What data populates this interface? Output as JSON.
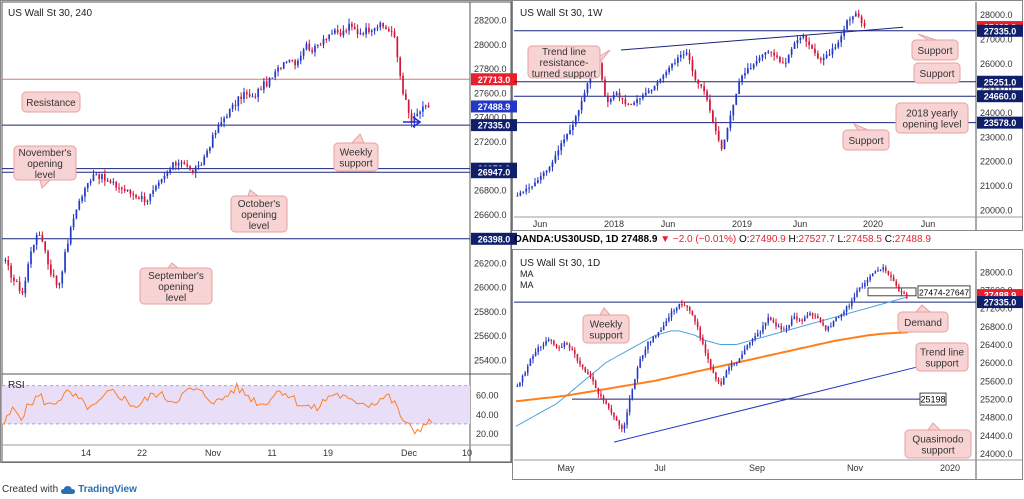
{
  "footer": {
    "created_with": "Created with",
    "brand": "TradingView",
    "brand_icon": "tradingview-cloud-icon"
  },
  "colors": {
    "up": "#2438c8",
    "down": "#d3173a",
    "resistance_line": "#e57373",
    "support_line": "#1a237e",
    "rsi_line": "#ff7f27",
    "rsi_fill": "#e9def8",
    "ma_blue": "#4aa3df",
    "ma_orange": "#ff7f1c",
    "label_bg": "#f8d3d3",
    "label_border": "#e7a1a1",
    "price_red": "#e8202e",
    "price_navy": "#101f6b"
  },
  "chart_data": [
    {
      "id": "h4",
      "type": "candlestick",
      "title": "US Wall St 30, 240",
      "ylim": [
        25300,
        28350
      ],
      "y_ticks": [
        25400,
        25600,
        25800,
        26000,
        26200,
        26400,
        26600,
        26800,
        27000,
        27200,
        27400,
        27600,
        27800,
        28000,
        28200
      ],
      "x_ticks": [
        "14",
        "22",
        "Nov",
        "11",
        "19",
        "Dec",
        "10"
      ],
      "levels": [
        {
          "label": "27713.0",
          "value": 27713,
          "style": "resistance"
        },
        {
          "label": "27488.9",
          "value": 27488.9,
          "style": "current"
        },
        {
          "label": "27335.0",
          "value": 27335,
          "style": "support"
        },
        {
          "label": "26976.0",
          "value": 26976,
          "style": "support"
        },
        {
          "label": "26947.0",
          "value": 26947,
          "style": "support"
        },
        {
          "label": "26398.0",
          "value": 26398,
          "style": "support"
        }
      ],
      "annotations": [
        {
          "text": "Resistance"
        },
        {
          "text": "Weekly support"
        },
        {
          "text": "November's opening level"
        },
        {
          "text": "October's opening level"
        },
        {
          "text": "September's opening level"
        }
      ],
      "path": [
        26200,
        26050,
        25950,
        26350,
        26450,
        26150,
        26000,
        26350,
        26650,
        26800,
        26950,
        26900,
        26850,
        26820,
        26780,
        26750,
        26720,
        26800,
        26900,
        27000,
        27050,
        26950,
        26980,
        27150,
        27300,
        27420,
        27500,
        27600,
        27550,
        27650,
        27700,
        27800,
        27900,
        27850,
        28000,
        27950,
        28050,
        28100,
        28080,
        28150,
        28100,
        28120,
        28160,
        28140,
        28100,
        27650,
        27350,
        27450,
        27488.9
      ],
      "rsi": {
        "label": "RSI",
        "y_ticks": [
          20,
          40,
          60
        ],
        "band": [
          30,
          70
        ],
        "values": [
          30,
          45,
          38,
          52,
          60,
          48,
          55,
          62,
          58,
          50,
          46,
          55,
          64,
          60,
          52,
          48,
          56,
          62,
          58,
          54,
          60,
          66,
          63,
          57,
          52,
          60,
          68,
          62,
          55,
          50,
          58,
          66,
          60,
          52,
          48,
          45,
          55,
          62,
          58,
          52,
          54,
          50,
          55,
          60,
          48,
          30,
          22,
          28,
          32
        ]
      }
    },
    {
      "id": "weekly",
      "type": "candlestick",
      "title": "US Wall St 30, 1W",
      "ylim": [
        19800,
        28350
      ],
      "y_ticks": [
        20000,
        21000,
        22000,
        23000,
        24000,
        25000,
        26000,
        27000,
        28000
      ],
      "x_ticks": [
        "Jun",
        "2018",
        "Jun",
        "2019",
        "Jun",
        "2020",
        "Jun"
      ],
      "levels": [
        {
          "label": "27488.9",
          "value": 27488.9,
          "style": "current"
        },
        {
          "label": "27335.0",
          "value": 27335,
          "style": "support"
        },
        {
          "label": "25251.0",
          "value": 25251,
          "style": "support"
        },
        {
          "label": "24660.0",
          "value": 24660,
          "style": "support"
        },
        {
          "label": "23578.0",
          "value": 23578,
          "style": "support"
        }
      ],
      "annotations": [
        {
          "text": "Trend line resistance-turned support"
        },
        {
          "text": "Support"
        },
        {
          "text": "Support"
        },
        {
          "text": "2018 yearly opening level"
        },
        {
          "text": "Support"
        }
      ],
      "path": [
        20600,
        20900,
        21100,
        21500,
        22000,
        22800,
        23300,
        24200,
        25400,
        26400,
        24300,
        24800,
        24400,
        24300,
        24700,
        24900,
        25300,
        25800,
        26200,
        26500,
        25300,
        24900,
        23500,
        22500,
        24000,
        25400,
        25800,
        26100,
        26500,
        26300,
        25900,
        26800,
        27200,
        26600,
        26100,
        26400,
        26800,
        27700,
        28100,
        27488.9
      ]
    },
    {
      "id": "daily",
      "type": "candlestick",
      "title": "US Wall St 30, 1D",
      "legend": [
        "MA",
        "MA"
      ],
      "header": {
        "symbol": "OANDA:US30USD, 1D",
        "last": "27488.9",
        "change": "▼ −2.0 (−0.01%)",
        "o_label": "O:",
        "o": "27490.9",
        "h_label": "H:",
        "h": "27527.7",
        "l_label": "L:",
        "l": "27458.5",
        "c_label": "C:",
        "c": "27488.9"
      },
      "ylim": [
        23900,
        28350
      ],
      "y_ticks": [
        24000,
        24400,
        24800,
        25200,
        25600,
        26000,
        26400,
        26800,
        27200,
        27600,
        28000
      ],
      "x_ticks": [
        "May",
        "Jul",
        "Sep",
        "Nov",
        "2020"
      ],
      "levels": [
        {
          "label": "27488.9",
          "value": 27488.9,
          "style": "current"
        },
        {
          "label": "27335.0",
          "value": 27335,
          "style": "support"
        },
        {
          "label": "25198",
          "value": 25198,
          "style": "quasimodo"
        }
      ],
      "zone": {
        "label": "27474-27647",
        "low": 27474,
        "high": 27647
      },
      "annotations": [
        {
          "text": "Weekly support"
        },
        {
          "text": "Demand"
        },
        {
          "text": "Trend line support"
        },
        {
          "text": "Quasimodo support"
        }
      ],
      "path": [
        25500,
        25800,
        26200,
        26400,
        26500,
        26300,
        26450,
        26200,
        25900,
        25700,
        25300,
        25100,
        24800,
        24500,
        25300,
        26000,
        26400,
        26600,
        26800,
        27100,
        27300,
        27200,
        26900,
        26300,
        25800,
        25500,
        25900,
        26000,
        26300,
        26500,
        26700,
        27000,
        26800,
        26700,
        27000,
        26900,
        27100,
        27000,
        26700,
        26900,
        27100,
        27300,
        27600,
        27800,
        28000,
        28100,
        27900,
        27600,
        27488.9
      ],
      "ma_blue": [
        24600,
        24700,
        24800,
        24900,
        25000,
        25100,
        25250,
        25400,
        25550,
        25700,
        25850,
        26000,
        26100,
        26200,
        26300,
        26400,
        26500,
        26600,
        26650,
        26700,
        26700,
        26650,
        26600,
        26500,
        26450,
        26400,
        26400,
        26400,
        26450,
        26500,
        26550,
        26600,
        26650,
        26700,
        26750,
        26800,
        26850,
        26900,
        26950,
        27000,
        27050,
        27100,
        27150,
        27200,
        27250,
        27300,
        27350,
        27400,
        27450
      ],
      "ma_orange": [
        25150,
        25170,
        25190,
        25210,
        25230,
        25250,
        25270,
        25300,
        25330,
        25360,
        25390,
        25420,
        25450,
        25480,
        25510,
        25540,
        25570,
        25600,
        25640,
        25680,
        25720,
        25760,
        25800,
        25840,
        25880,
        25920,
        25960,
        26000,
        26040,
        26080,
        26120,
        26160,
        26200,
        26240,
        26280,
        26320,
        26360,
        26400,
        26440,
        26480,
        26510,
        26540,
        26570,
        26600,
        26620,
        26640,
        26650,
        26660,
        26670
      ]
    }
  ]
}
